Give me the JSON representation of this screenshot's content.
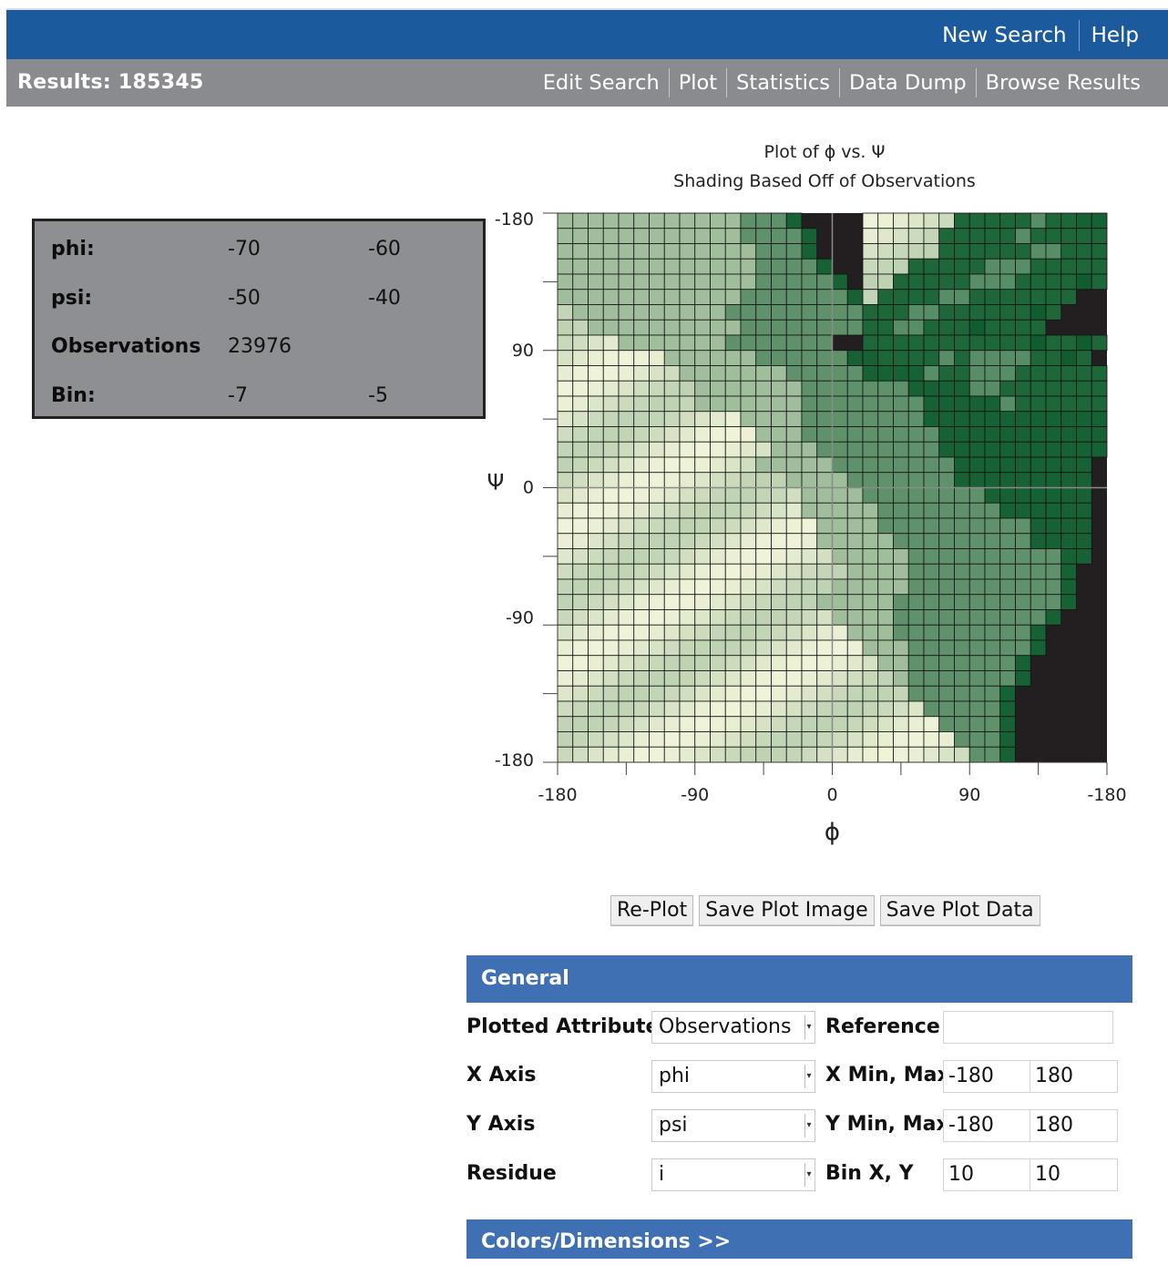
{
  "topnav": {
    "new_search": "New Search",
    "help": "Help"
  },
  "subbar": {
    "results": "Results: 185345",
    "links": [
      "Edit Search",
      "Plot",
      "Statistics",
      "Data Dump",
      "Browse Results"
    ]
  },
  "info": {
    "phi": {
      "label": "phi:",
      "v1": "-70",
      "v2": "-60"
    },
    "psi": {
      "label": "psi:",
      "v1": "-50",
      "v2": "-40"
    },
    "obs": {
      "label": "Observations",
      "v1": "23976"
    },
    "bin": {
      "label": "Bin:",
      "v1": "-7",
      "v2": "-5"
    }
  },
  "chart_data": {
    "type": "heatmap",
    "title": "Plot of ϕ vs. Ψ",
    "subtitle": "Shading Based Off of Observations",
    "xlabel": "ϕ",
    "ylabel": "Ψ",
    "xlim": [
      -180,
      180
    ],
    "ylim": [
      -180,
      180
    ],
    "x_tick_labels": [
      "-180",
      "-90",
      "0",
      "90",
      "-180"
    ],
    "y_tick_labels": [
      "-180",
      "90",
      "0",
      "-90",
      "-180"
    ],
    "bin_size": [
      10,
      10
    ],
    "grid": true,
    "colors": {
      "background": "#231f20",
      "low": "#0b5a2b",
      "high": "#fbfbe0",
      "crosshair": "#8a8a8a"
    },
    "value_scale": "observation density, 0 = empty, 1 = highest",
    "rows_top_to_bottom": [
      "ggggggggggggvvvw|hhhhhh=====:==ww=ww",
      "ggggggggggggvvvvw|hhhhh=====:======w",
      "gggggggggggggvvvw|hhhhh======::====w",
      "gggggggggggggvvvvw|hhh=====:::=====w",
      "gggggggggggggvvvvvw|hh=====:::====-=",
      "ggggggggggggvvvvvvvww|h====::=======",
      "hggggggggggvvvvvvvvvww|===::======-=",
      "hhggggggggggvvvvvvvv===|==::===-====",
      "hhhhgggggggvvvvvvv|===========-==-==",
      "hhhhhhhggggggvvvvvvww====:=::::==-=",
      "hhhhhhhhgggggggvvvvvwwww:==:::======",
      "hhhhhhhhhgggggggvvvvvvvwwww::=======",
      "hhhhhhhhhgggggggvvvvvvvvwwwww:======",
      "hhhhhhhhhhhhggggvvvvvvvvwwwwwwwwwwww",
      "hhhhhhhhhhhhhgggvvvvvvvvvwwwwwwwwwww",
      "hhhhhhhhhhhhhhgggvvvvvvvvwwwwwwwwwww",
      "hhhhhhhhhhhhhgggggvvvvvvvvwwwwwwwww",
      "hhhhhhhhhhhhhhhggggvvvvvvvwwwwwwwww",
      "hhhhhhhhhhhhhhhhggggvvvvvvvvwwwwwww",
      "hhhhhhhhhhhhhhhhgggggvvvvvvvvwwwwww",
      "hhhhhhhhhhhhhhhhhggggvvvvvvvvvvwwww",
      "hhhhhhhhhhhhhhhhhgggggvvvvvvvvvwwww",
      "hhhhhhhhhhhhhhhhhhgggggvvvvvvvvvvww",
      "hhhhhhhhhhhhhhhhhhhggggvvvvvvvvvvw",
      "hhhhhhhhhhhhhhhhhhgggggvvvvvvvvvvw",
      "hhhhhhhhhhhhhhhhhgggggvvvvvvvvvvvw",
      "hhhhhhhhhhhhhhhhhhggggvvvvvvvvvvw",
      "hhhhhhhhhhhhhhhhhhhgggvvvvvvvvvw",
      "hhhhhhhhhhhhhhhhhhhhgggvvvvvvvvw",
      "hhhhhhhhhhhhhhhhhhhhhggvvvvvvvw",
      "hhhhhhhhhhhhhhhhhhhhhhgvvvvvvvw",
      "hhhhhhhhhhhhhhhhhhhhhhhvvvvvvw",
      "hhhhhhhhhhhhhhhhhhhhhhhhvvvvvw",
      "hhhhhhhhhhhhhhhhhhhhhhhhhvvvvw",
      "hhhhhhhhhhhhhhhhhhhhhhhhhhvvvw",
      "hhhhhhhhhhhhhhhhhhhhhhhhhhhvvw"
    ]
  },
  "buttons": {
    "replot": "Re-Plot",
    "save_image": "Save Plot Image",
    "save_data": "Save Plot Data"
  },
  "general": {
    "header": "General",
    "plotted_attribute": {
      "label": "Plotted Attribute",
      "value": "Observations"
    },
    "reference": {
      "label": "Reference",
      "value": ""
    },
    "x_axis": {
      "label": "X Axis",
      "value": "phi"
    },
    "x_minmax": {
      "label": "X Min, Max",
      "min": "-180",
      "max": "180"
    },
    "y_axis": {
      "label": "Y Axis",
      "value": "psi"
    },
    "y_minmax": {
      "label": "Y Min, Max",
      "min": "-180",
      "max": "180"
    },
    "residue": {
      "label": "Residue",
      "value": "i"
    },
    "bin": {
      "label": "Bin X, Y",
      "x": "10",
      "y": "10"
    }
  },
  "colors_dimensions": {
    "header": "Colors/Dimensions >>"
  }
}
